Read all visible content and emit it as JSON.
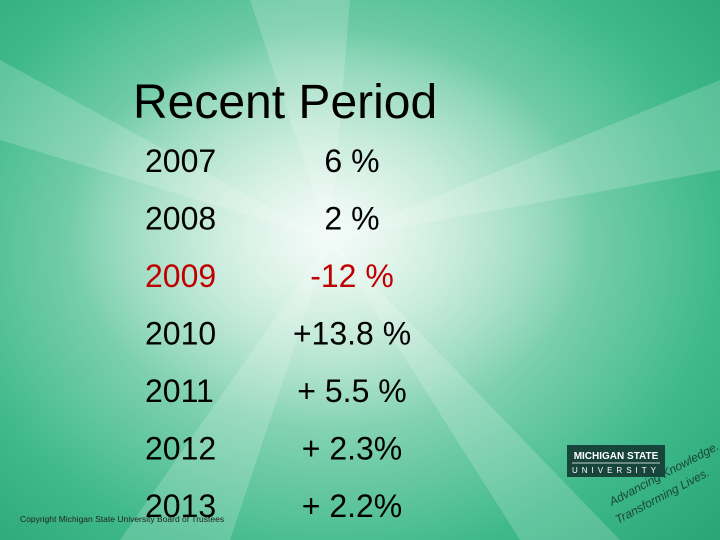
{
  "title": "Recent Period",
  "table": {
    "rows": [
      {
        "year": "2007",
        "change": "6 %",
        "color": "#000000"
      },
      {
        "year": "2008",
        "change": "2 %",
        "color": "#000000"
      },
      {
        "year": "2009",
        "change": "-12 %",
        "color": "#c00000"
      },
      {
        "year": "2010",
        "change": "+13.8 %",
        "color": "#000000"
      },
      {
        "year": "2011",
        "change": "+ 5.5 %",
        "color": "#000000"
      },
      {
        "year": "2012",
        "change": "+ 2.3%",
        "color": "#000000"
      },
      {
        "year": "2013",
        "change": "+ 2.2%",
        "color": "#000000"
      }
    ]
  },
  "footer": {
    "copyright": "Copyright Michigan State University Board of Trustees"
  },
  "logo": {
    "name_line1": "MICHIGAN STATE",
    "name_line2": "UNIVERSITY",
    "tagline1": "Advancing Knowledge.",
    "tagline2": "Transforming Lives."
  }
}
